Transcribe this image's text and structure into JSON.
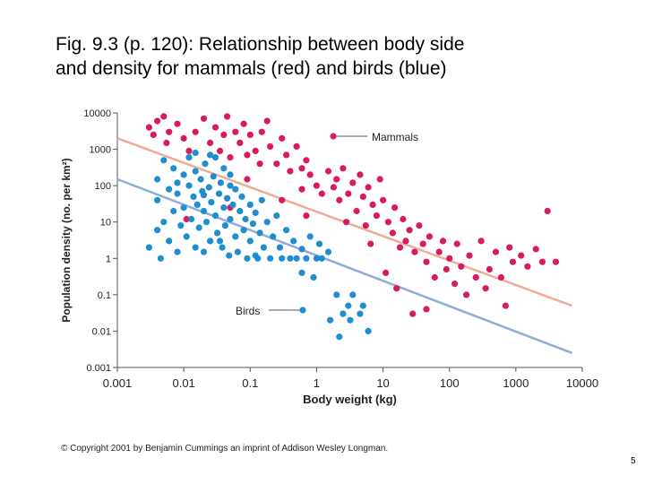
{
  "slide": {
    "title_line1": "Fig. 9.3 (p. 120): Relationship between body side",
    "title_line2": "and density for mammals (red) and birds (blue)",
    "copyright": "© Copyright 2001 by Benjamin Cummings an imprint of Addison Wesley Longman.",
    "page_number": "5"
  },
  "colors": {
    "mammals": "#d81b5c",
    "birds": "#1f8ed0",
    "mammals_line": "#f0aa96",
    "birds_line": "#8fadd6",
    "axis": "#555555"
  },
  "chart_data": {
    "type": "scatter",
    "title": "",
    "xlabel": "Body weight (kg)",
    "ylabel": "Population density (no. per km²)",
    "xscale": "log",
    "yscale": "log",
    "xlim": [
      0.001,
      10000
    ],
    "ylim": [
      0.001,
      10000
    ],
    "x_ticks": [
      0.001,
      0.01,
      0.1,
      1,
      10,
      100,
      1000,
      10000
    ],
    "x_tick_labels": [
      "0.001",
      "0.01",
      "0.1",
      "1",
      "10",
      "100",
      "1000",
      "10000"
    ],
    "y_ticks": [
      0.001,
      0.01,
      0.1,
      1,
      10,
      100,
      1000,
      10000
    ],
    "y_tick_labels": [
      "0.001",
      "0.01",
      "0.1",
      "1",
      "10",
      "100",
      "1000",
      "10000"
    ],
    "grid": false,
    "annotations": [
      {
        "text": "Mammals",
        "series": "Mammals"
      },
      {
        "text": "Birds",
        "series": "Birds"
      }
    ],
    "series": [
      {
        "name": "Mammals",
        "color": "#d81b5c",
        "points": [
          [
            0.003,
            4000
          ],
          [
            0.004,
            6000
          ],
          [
            0.0035,
            2500
          ],
          [
            0.005,
            8000
          ],
          [
            0.006,
            3000
          ],
          [
            0.0055,
            1500
          ],
          [
            0.008,
            5000
          ],
          [
            0.01,
            2000
          ],
          [
            0.012,
            900
          ],
          [
            0.015,
            3000
          ],
          [
            0.02,
            7000
          ],
          [
            0.025,
            1500
          ],
          [
            0.03,
            4000
          ],
          [
            0.035,
            900
          ],
          [
            0.04,
            2500
          ],
          [
            0.045,
            8000
          ],
          [
            0.05,
            600
          ],
          [
            0.06,
            3000
          ],
          [
            0.07,
            1500
          ],
          [
            0.08,
            5000
          ],
          [
            0.09,
            700
          ],
          [
            0.1,
            2500
          ],
          [
            0.12,
            900
          ],
          [
            0.14,
            400
          ],
          [
            0.15,
            3000
          ],
          [
            0.18,
            6000
          ],
          [
            0.2,
            1200
          ],
          [
            0.25,
            400
          ],
          [
            0.3,
            2000
          ],
          [
            0.35,
            700
          ],
          [
            0.4,
            250
          ],
          [
            0.5,
            1200
          ],
          [
            0.6,
            300
          ],
          [
            0.7,
            500
          ],
          [
            0.8,
            200
          ],
          [
            1,
            100
          ],
          [
            1.2,
            60
          ],
          [
            1.5,
            250
          ],
          [
            1.8,
            90
          ],
          [
            2,
            150
          ],
          [
            2.2,
            40
          ],
          [
            2.5,
            300
          ],
          [
            3,
            60
          ],
          [
            3.5,
            120
          ],
          [
            4,
            20
          ],
          [
            4.5,
            200
          ],
          [
            5,
            50
          ],
          [
            5.5,
            8
          ],
          [
            6,
            90
          ],
          [
            7,
            30
          ],
          [
            8,
            15
          ],
          [
            9,
            150
          ],
          [
            10,
            40
          ],
          [
            12,
            10
          ],
          [
            14,
            5
          ],
          [
            15,
            25
          ],
          [
            18,
            2
          ],
          [
            20,
            12
          ],
          [
            22,
            3
          ],
          [
            25,
            6
          ],
          [
            30,
            1.5
          ],
          [
            35,
            8
          ],
          [
            40,
            2.5
          ],
          [
            45,
            0.8
          ],
          [
            50,
            4
          ],
          [
            60,
            0.3
          ],
          [
            70,
            1.5
          ],
          [
            80,
            3
          ],
          [
            90,
            0.5
          ],
          [
            100,
            1
          ],
          [
            120,
            0.2
          ],
          [
            130,
            2.5
          ],
          [
            150,
            0.6
          ],
          [
            180,
            0.1
          ],
          [
            200,
            1.2
          ],
          [
            250,
            0.3
          ],
          [
            300,
            3
          ],
          [
            350,
            0.15
          ],
          [
            400,
            0.5
          ],
          [
            500,
            1.5
          ],
          [
            600,
            0.3
          ],
          [
            700,
            0.05
          ],
          [
            800,
            2
          ],
          [
            900,
            0.8
          ],
          [
            1200,
            1.2
          ],
          [
            1500,
            0.6
          ],
          [
            2000,
            1.8
          ],
          [
            2500,
            0.8
          ],
          [
            3000,
            20
          ],
          [
            4000,
            0.8
          ],
          [
            0.011,
            12
          ],
          [
            0.05,
            25
          ],
          [
            0.3,
            40
          ],
          [
            0.7,
            15
          ],
          [
            2.8,
            10
          ],
          [
            6.5,
            2.5
          ],
          [
            11,
            0.4
          ],
          [
            16,
            0.15
          ],
          [
            28,
            0.03
          ],
          [
            45,
            0.04
          ],
          [
            0.09,
            150
          ],
          [
            0.6,
            80
          ]
        ]
      },
      {
        "name": "Birds",
        "color": "#1f8ed0",
        "points": [
          [
            0.003,
            2
          ],
          [
            0.004,
            40
          ],
          [
            0.004,
            150
          ],
          [
            0.005,
            10
          ],
          [
            0.005,
            500
          ],
          [
            0.006,
            3
          ],
          [
            0.006,
            80
          ],
          [
            0.007,
            20
          ],
          [
            0.007,
            300
          ],
          [
            0.008,
            1.5
          ],
          [
            0.008,
            60
          ],
          [
            0.009,
            8
          ],
          [
            0.01,
            200
          ],
          [
            0.01,
            25
          ],
          [
            0.011,
            4
          ],
          [
            0.012,
            100
          ],
          [
            0.012,
            600
          ],
          [
            0.013,
            12
          ],
          [
            0.014,
            50
          ],
          [
            0.015,
            2
          ],
          [
            0.015,
            250
          ],
          [
            0.016,
            30
          ],
          [
            0.017,
            7
          ],
          [
            0.018,
            150
          ],
          [
            0.019,
            70
          ],
          [
            0.02,
            1.5
          ],
          [
            0.02,
            20
          ],
          [
            0.021,
            400
          ],
          [
            0.022,
            10
          ],
          [
            0.024,
            90
          ],
          [
            0.025,
            3
          ],
          [
            0.026,
            35
          ],
          [
            0.028,
            180
          ],
          [
            0.03,
            15
          ],
          [
            0.03,
            600
          ],
          [
            0.032,
            5
          ],
          [
            0.034,
            60
          ],
          [
            0.036,
            120
          ],
          [
            0.038,
            2
          ],
          [
            0.04,
            25
          ],
          [
            0.04,
            300
          ],
          [
            0.042,
            8
          ],
          [
            0.045,
            45
          ],
          [
            0.048,
            1.2
          ],
          [
            0.05,
            100
          ],
          [
            0.05,
            12
          ],
          [
            0.055,
            30
          ],
          [
            0.06,
            4
          ],
          [
            0.06,
            80
          ],
          [
            0.065,
            1.5
          ],
          [
            0.07,
            20
          ],
          [
            0.075,
            50
          ],
          [
            0.08,
            6
          ],
          [
            0.085,
            12
          ],
          [
            0.09,
            1
          ],
          [
            0.1,
            30
          ],
          [
            0.1,
            3
          ],
          [
            0.11,
            9
          ],
          [
            0.12,
            18
          ],
          [
            0.13,
            1
          ],
          [
            0.14,
            5
          ],
          [
            0.15,
            40
          ],
          [
            0.16,
            2
          ],
          [
            0.18,
            10
          ],
          [
            0.2,
            1
          ],
          [
            0.22,
            4
          ],
          [
            0.25,
            15
          ],
          [
            0.28,
            2
          ],
          [
            0.3,
            1
          ],
          [
            0.35,
            6
          ],
          [
            0.4,
            1
          ],
          [
            0.45,
            3
          ],
          [
            0.5,
            1
          ],
          [
            0.6,
            1.8
          ],
          [
            0.7,
            1
          ],
          [
            0.8,
            4
          ],
          [
            1,
            1
          ],
          [
            1.2,
            1
          ],
          [
            1.5,
            1.5
          ],
          [
            2,
            0.1
          ],
          [
            2.5,
            0.03
          ],
          [
            3,
            0.05
          ],
          [
            3.5,
            0.1
          ],
          [
            4.5,
            0.03
          ],
          [
            5,
            0.05
          ],
          [
            6,
            0.01
          ],
          [
            1.6,
            0.02
          ],
          [
            2.2,
            0.007
          ],
          [
            3.2,
            0.02
          ],
          [
            0.015,
            800
          ],
          [
            0.025,
            700
          ],
          [
            0.008,
            120
          ],
          [
            0.02,
            55
          ],
          [
            0.05,
            200
          ],
          [
            0.035,
            3
          ],
          [
            0.12,
            1.2
          ],
          [
            0.6,
            0.4
          ],
          [
            0.9,
            0.3
          ],
          [
            1.1,
            2.5
          ],
          [
            0.004,
            6
          ],
          [
            0.0045,
            1
          ]
        ]
      }
    ],
    "fit_lines": [
      {
        "series": "Mammals",
        "x": [
          0.001,
          7000
        ],
        "y": [
          2000,
          0.05
        ]
      },
      {
        "series": "Birds",
        "x": [
          0.001,
          7000
        ],
        "y": [
          150,
          0.0025
        ]
      }
    ]
  }
}
